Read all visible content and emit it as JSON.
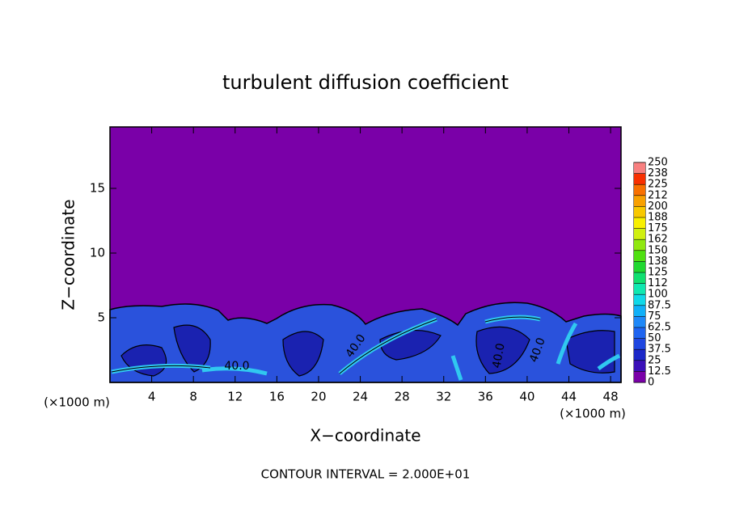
{
  "chart_data": {
    "type": "contour",
    "title": "turbulent diffusion coefficient",
    "xlabel": "X−coordinate",
    "ylabel": "Z−coordinate",
    "unit_labels": [
      "(×1000 m)",
      "(×1000 m)"
    ],
    "annotation": "CONTOUR INTERVAL = 2.000E+01",
    "contour_labels": [
      "40.0",
      "40.0",
      "40.0",
      "40.0"
    ],
    "xlim": [
      0,
      49
    ],
    "xticks": [
      4,
      8,
      12,
      16,
      20,
      24,
      28,
      32,
      36,
      40,
      44,
      48
    ],
    "ylim": [
      0,
      19.75
    ],
    "yticks": [
      5,
      10,
      15
    ],
    "background_color": "#7a00a8",
    "colorbar": {
      "ticks": [
        0,
        12.5,
        25,
        37.5,
        50,
        62.5,
        75,
        87.5,
        100,
        112,
        125,
        138,
        150,
        162,
        175,
        188,
        200,
        212,
        225,
        238,
        250
      ],
      "colors": [
        "#7a00a8",
        "#3a10b8",
        "#1c28c8",
        "#1e46e0",
        "#1e64f0",
        "#1e88f8",
        "#10b0f8",
        "#10d8e8",
        "#10e8b0",
        "#10e070",
        "#20d830",
        "#50e010",
        "#90e810",
        "#d0f010",
        "#f8f000",
        "#f8c800",
        "#f8a000",
        "#f87000",
        "#f83000",
        "#f88080"
      ]
    }
  }
}
